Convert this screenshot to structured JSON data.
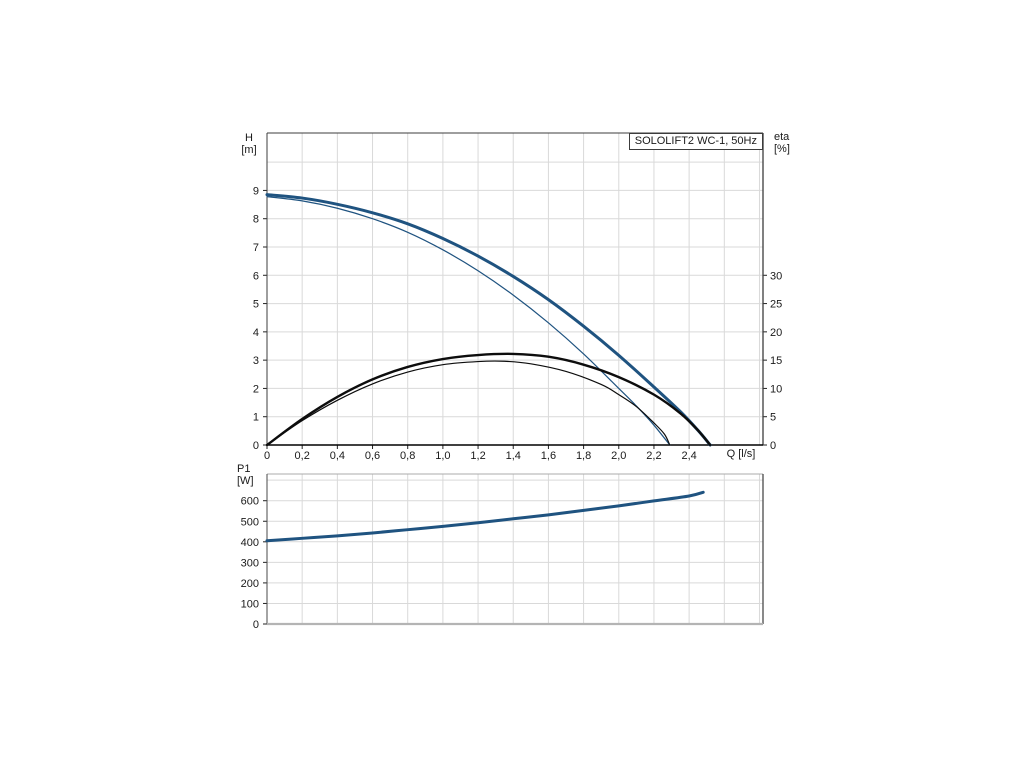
{
  "page": {
    "background": "#ffffff"
  },
  "colors": {
    "curve_blue": "#1f5380",
    "curve_black": "#0d0d0d",
    "grid": "#d9d9d9",
    "border_dark": "#3c3c3c",
    "border_light": "#ababab",
    "text": "#1a1a1a"
  },
  "chart_data": [
    {
      "type": "line",
      "title": "SOLOLIFT2 WC-1, 50Hz",
      "xlabel": "Q [l/s]",
      "ylabel": "H [m]",
      "ylabel_lines": [
        "H",
        "[m]"
      ],
      "y2label": "eta [%]",
      "y2label_lines": [
        "eta",
        "[%]"
      ],
      "xlim": [
        0,
        2.82
      ],
      "ylim": [
        0,
        11.03
      ],
      "y2lim": [
        0,
        55.15
      ],
      "grid": true,
      "legend": "none",
      "x_grid_step": 0.2,
      "y_grid_step": 1,
      "x_ticks": {
        "values": [
          0,
          0.2,
          0.4,
          0.6,
          0.8,
          1.0,
          1.2,
          1.4,
          1.6,
          1.8,
          2.0,
          2.2,
          2.4
        ],
        "labels": [
          "0",
          "0,2",
          "0,4",
          "0,6",
          "0,8",
          "1,0",
          "1,2",
          "1,4",
          "1,6",
          "1,8",
          "2,0",
          "2,2",
          "2,4"
        ]
      },
      "y_ticks": {
        "values": [
          0,
          1,
          2,
          3,
          4,
          5,
          6,
          7,
          8,
          9
        ],
        "labels": [
          "0",
          "1",
          "2",
          "3",
          "4",
          "5",
          "6",
          "7",
          "8",
          "9"
        ]
      },
      "y2_ticks": {
        "values": [
          0,
          5,
          10,
          15,
          20,
          25,
          30
        ],
        "labels": [
          "0",
          "5",
          "10",
          "15",
          "20",
          "25",
          "30"
        ]
      },
      "series": [
        {
          "name": "head-curve-thick",
          "axis": "y",
          "color": "#1f5380",
          "width": 3,
          "points": [
            [
              0,
              8.85
            ],
            [
              0.2,
              8.73
            ],
            [
              0.4,
              8.51
            ],
            [
              0.6,
              8.21
            ],
            [
              0.8,
              7.82
            ],
            [
              1.0,
              7.3
            ],
            [
              1.2,
              6.68
            ],
            [
              1.4,
              5.96
            ],
            [
              1.6,
              5.14
            ],
            [
              1.8,
              4.2
            ],
            [
              2.0,
              3.17
            ],
            [
              2.2,
              2.05
            ],
            [
              2.35,
              1.18
            ],
            [
              2.45,
              0.52
            ],
            [
              2.52,
              0
            ]
          ]
        },
        {
          "name": "head-curve-thin",
          "axis": "y",
          "color": "#1f5380",
          "width": 1.2,
          "points": [
            [
              0,
              8.78
            ],
            [
              0.2,
              8.63
            ],
            [
              0.4,
              8.37
            ],
            [
              0.6,
              8.0
            ],
            [
              0.8,
              7.52
            ],
            [
              1.0,
              6.9
            ],
            [
              1.2,
              6.16
            ],
            [
              1.4,
              5.3
            ],
            [
              1.6,
              4.32
            ],
            [
              1.8,
              3.22
            ],
            [
              2.0,
              2.0
            ],
            [
              2.1,
              1.38
            ],
            [
              2.2,
              0.7
            ],
            [
              2.29,
              0
            ]
          ]
        },
        {
          "name": "eta-curve-thick",
          "axis": "y2",
          "color": "#0d0d0d",
          "width": 2.4,
          "points": [
            [
              0,
              0
            ],
            [
              0.2,
              4.6
            ],
            [
              0.4,
              8.5
            ],
            [
              0.6,
              11.6
            ],
            [
              0.8,
              13.8
            ],
            [
              1.0,
              15.2
            ],
            [
              1.2,
              15.9
            ],
            [
              1.4,
              16.1
            ],
            [
              1.6,
              15.6
            ],
            [
              1.8,
              14.2
            ],
            [
              2.0,
              12.0
            ],
            [
              2.2,
              8.9
            ],
            [
              2.35,
              5.6
            ],
            [
              2.45,
              2.6
            ],
            [
              2.52,
              0
            ]
          ]
        },
        {
          "name": "eta-curve-thin",
          "axis": "y2",
          "color": "#0d0d0d",
          "width": 1.2,
          "points": [
            [
              0,
              0
            ],
            [
              0.2,
              4.3
            ],
            [
              0.4,
              7.9
            ],
            [
              0.6,
              10.8
            ],
            [
              0.8,
              12.9
            ],
            [
              1.0,
              14.2
            ],
            [
              1.2,
              14.75
            ],
            [
              1.35,
              14.8
            ],
            [
              1.5,
              14.35
            ],
            [
              1.7,
              13.0
            ],
            [
              1.9,
              10.7
            ],
            [
              2.0,
              8.9
            ],
            [
              2.1,
              6.8
            ],
            [
              2.2,
              3.9
            ],
            [
              2.26,
              1.9
            ],
            [
              2.29,
              0
            ]
          ]
        }
      ]
    },
    {
      "type": "line",
      "title": "",
      "xlabel": "",
      "ylabel": "P1 [W]",
      "ylabel_lines": [
        "P1",
        "[W]"
      ],
      "xlim": [
        0,
        2.82
      ],
      "ylim": [
        0,
        730
      ],
      "grid": true,
      "legend": "none",
      "x_grid_step": 0.2,
      "y_grid_step": 100,
      "y_ticks": {
        "values": [
          0,
          100,
          200,
          300,
          400,
          500,
          600
        ],
        "labels": [
          "0",
          "100",
          "200",
          "300",
          "400",
          "500",
          "600"
        ]
      },
      "series": [
        {
          "name": "p1-curve",
          "axis": "y",
          "color": "#1f5380",
          "width": 3,
          "points": [
            [
              0,
              405
            ],
            [
              0.2,
              417
            ],
            [
              0.4,
              429
            ],
            [
              0.6,
              443
            ],
            [
              0.8,
              459
            ],
            [
              1.0,
              475
            ],
            [
              1.2,
              493
            ],
            [
              1.4,
              512
            ],
            [
              1.6,
              531
            ],
            [
              1.8,
              553
            ],
            [
              2.0,
              575
            ],
            [
              2.2,
              599
            ],
            [
              2.4,
              623
            ],
            [
              2.48,
              641
            ]
          ]
        }
      ]
    }
  ]
}
